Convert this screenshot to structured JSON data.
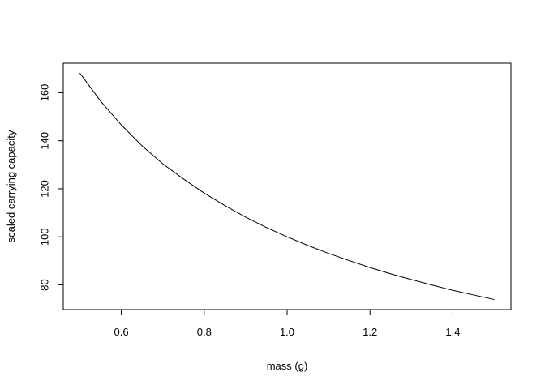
{
  "chart_data": {
    "type": "line",
    "title": "",
    "xlabel": "mass (g)",
    "ylabel": "scaled carrying capacity",
    "xlim": [
      0.46,
      1.54
    ],
    "ylim": [
      69.7,
      172.3
    ],
    "xticks": [
      0.6,
      0.8,
      1.0,
      1.2,
      1.4
    ],
    "xtick_labels": [
      "0.6",
      "0.8",
      "1.0",
      "1.2",
      "1.4"
    ],
    "yticks": [
      80,
      100,
      120,
      140,
      160
    ],
    "ytick_labels": [
      "80",
      "100",
      "120",
      "140",
      "160"
    ],
    "grid": false,
    "legend": "none",
    "line_color": "#000000",
    "series": [
      {
        "x": [
          0.5,
          0.55,
          0.6,
          0.65,
          0.7,
          0.75,
          0.8,
          0.85,
          0.9,
          0.95,
          1.0,
          1.05,
          1.1,
          1.15,
          1.2,
          1.25,
          1.3,
          1.35,
          1.4,
          1.45,
          1.5
        ],
        "values": [
          168.2,
          156.5,
          146.6,
          137.9,
          130.4,
          124.1,
          118.2,
          113.0,
          108.2,
          103.9,
          100.0,
          96.4,
          93.1,
          90.1,
          87.2,
          84.6,
          82.2,
          79.9,
          77.7,
          75.8,
          73.9
        ]
      }
    ]
  }
}
